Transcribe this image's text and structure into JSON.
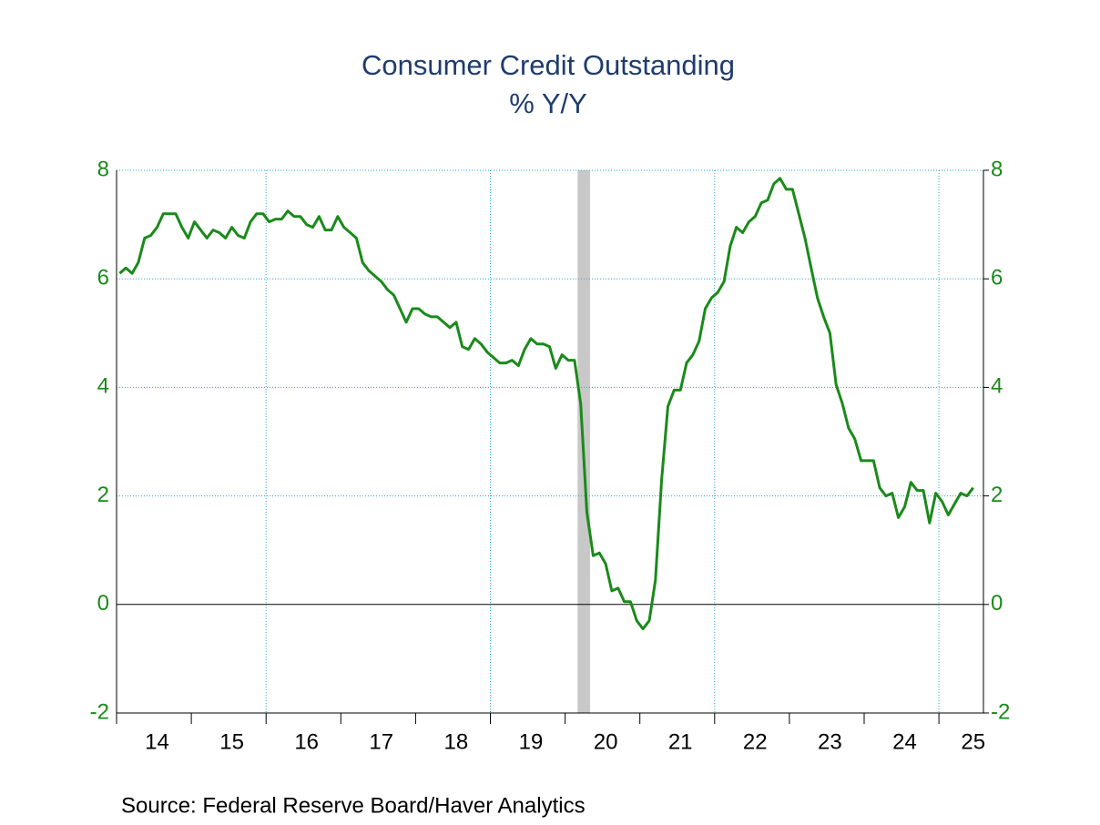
{
  "chart_data": {
    "type": "line",
    "title": "Consumer Credit Outstanding",
    "subtitle": "% Y/Y",
    "source": "Source:  Federal Reserve Board/Haver Analytics",
    "color": "#1a8a1a",
    "categories": [
      null,
      null,
      null,
      null,
      null,
      null,
      "14",
      null,
      null,
      null,
      null,
      null,
      null,
      null,
      null,
      null,
      null,
      null,
      "15",
      null,
      null,
      null,
      null,
      null,
      null,
      null,
      null,
      null,
      null,
      null,
      "16",
      null,
      null,
      null,
      null,
      null,
      null,
      null,
      null,
      null,
      null,
      null,
      "17",
      null,
      null,
      null,
      null,
      null,
      null,
      null,
      null,
      null,
      null,
      null,
      "18",
      null,
      null,
      null,
      null,
      null,
      null,
      null,
      null,
      null,
      null,
      null,
      "19",
      null,
      null,
      null,
      null,
      null,
      null,
      null,
      null,
      null,
      null,
      null,
      "20",
      null,
      null,
      null,
      null,
      null,
      null,
      null,
      null,
      null,
      null,
      null,
      "21",
      null,
      null,
      null,
      null,
      null,
      null,
      null,
      null,
      null,
      null,
      null,
      "22",
      null,
      null,
      null,
      null,
      null,
      null,
      null,
      null,
      null,
      null,
      null,
      "23",
      null,
      null,
      null,
      null,
      null,
      null,
      null,
      null,
      null,
      null,
      null,
      "24",
      null,
      null,
      null,
      null,
      null,
      null,
      null,
      null,
      null,
      null,
      "25"
    ],
    "values": [
      6.1,
      6.2,
      6.1,
      6.3,
      6.75,
      6.8,
      6.95,
      7.2,
      7.2,
      7.2,
      6.95,
      6.75,
      7.05,
      6.9,
      6.75,
      6.9,
      6.85,
      6.75,
      6.95,
      6.8,
      6.75,
      7.05,
      7.2,
      7.2,
      7.05,
      7.1,
      7.1,
      7.25,
      7.15,
      7.15,
      7.0,
      6.95,
      7.15,
      6.9,
      6.9,
      7.15,
      6.95,
      6.85,
      6.75,
      6.3,
      6.15,
      6.05,
      5.95,
      5.8,
      5.7,
      5.45,
      5.2,
      5.45,
      5.45,
      5.35,
      5.3,
      5.3,
      5.2,
      5.1,
      5.2,
      4.75,
      4.7,
      4.9,
      4.8,
      4.65,
      4.55,
      4.45,
      4.45,
      4.5,
      4.4,
      4.7,
      4.9,
      4.8,
      4.8,
      4.75,
      4.35,
      4.6,
      4.5,
      4.5,
      3.7,
      1.7,
      0.9,
      0.95,
      0.75,
      0.25,
      0.3,
      0.05,
      0.05,
      -0.3,
      -0.45,
      -0.3,
      0.45,
      2.3,
      3.65,
      3.95,
      3.95,
      4.45,
      4.6,
      4.85,
      5.45,
      5.65,
      5.75,
      5.95,
      6.6,
      6.95,
      6.85,
      7.05,
      7.15,
      7.4,
      7.45,
      7.75,
      7.85,
      7.65,
      7.65,
      7.2,
      6.75,
      6.2,
      5.65,
      5.3,
      5.0,
      4.05,
      3.7,
      3.25,
      3.05,
      2.65,
      2.65,
      2.65,
      2.15,
      2.0,
      2.05,
      1.6,
      1.8,
      2.25,
      2.1,
      2.1,
      1.5,
      2.05,
      1.9,
      1.65,
      1.85,
      2.05,
      2.0,
      2.15
    ],
    "ylim": [
      -2,
      8
    ],
    "yticks": [
      -2,
      0,
      2,
      4,
      6,
      8
    ],
    "y2lim": [
      -2,
      8
    ],
    "y2ticks": [
      -2,
      0,
      2,
      4,
      6,
      8
    ],
    "grid": true
  }
}
